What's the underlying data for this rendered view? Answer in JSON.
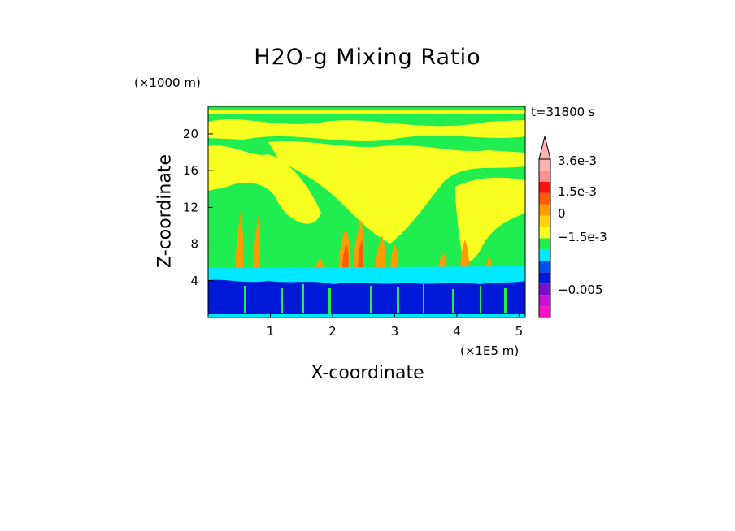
{
  "chart_data": {
    "type": "heatmap",
    "title": "H2O-g Mixing Ratio",
    "xlabel": "X-coordinate",
    "ylabel": "Z-coordinate",
    "x_unit": "(×1E5 m)",
    "y_unit": "(×1000 m)",
    "time_label": "t=31800 s",
    "xlim": [
      0,
      5.1
    ],
    "ylim": [
      0,
      23
    ],
    "x_ticks": [
      1,
      2,
      3,
      4,
      5
    ],
    "x_tick_labels": [
      "1",
      "2",
      "3",
      "4",
      "5"
    ],
    "y_ticks": [
      4,
      8,
      12,
      16,
      20
    ],
    "y_tick_labels": [
      "4",
      "8",
      "12",
      "16",
      "20"
    ],
    "colorbar": {
      "colors": [
        "#ff10c8",
        "#c810d8",
        "#7810c8",
        "#0018d8",
        "#0050f0",
        "#00e8ff",
        "#20ee50",
        "#f8ff20",
        "#ffd400",
        "#ff9a00",
        "#ff5a00",
        "#ff1010",
        "#ff9090",
        "#ffb0b0"
      ],
      "tick_labels": [
        "3.6e-3",
        "1.5e-3",
        "0",
        "−1.5e-3",
        "−0.005"
      ],
      "tick_values": [
        0.0036,
        0.0015,
        0,
        -0.0015,
        -0.005
      ],
      "extend": "max"
    },
    "layers": [
      {
        "z_range": [
          0,
          2
        ],
        "value_range": "-1.5e-3 to -0.005",
        "dominant_color": "#0018d8"
      },
      {
        "z_range": [
          2,
          5
        ],
        "value_range": "~ -1e-3",
        "dominant_color": "#00e8ff"
      },
      {
        "z_range": [
          5,
          22
        ],
        "value_range": "~ 0 (mixed with positive plumes)",
        "dominant_color": "#20ee50"
      }
    ]
  }
}
